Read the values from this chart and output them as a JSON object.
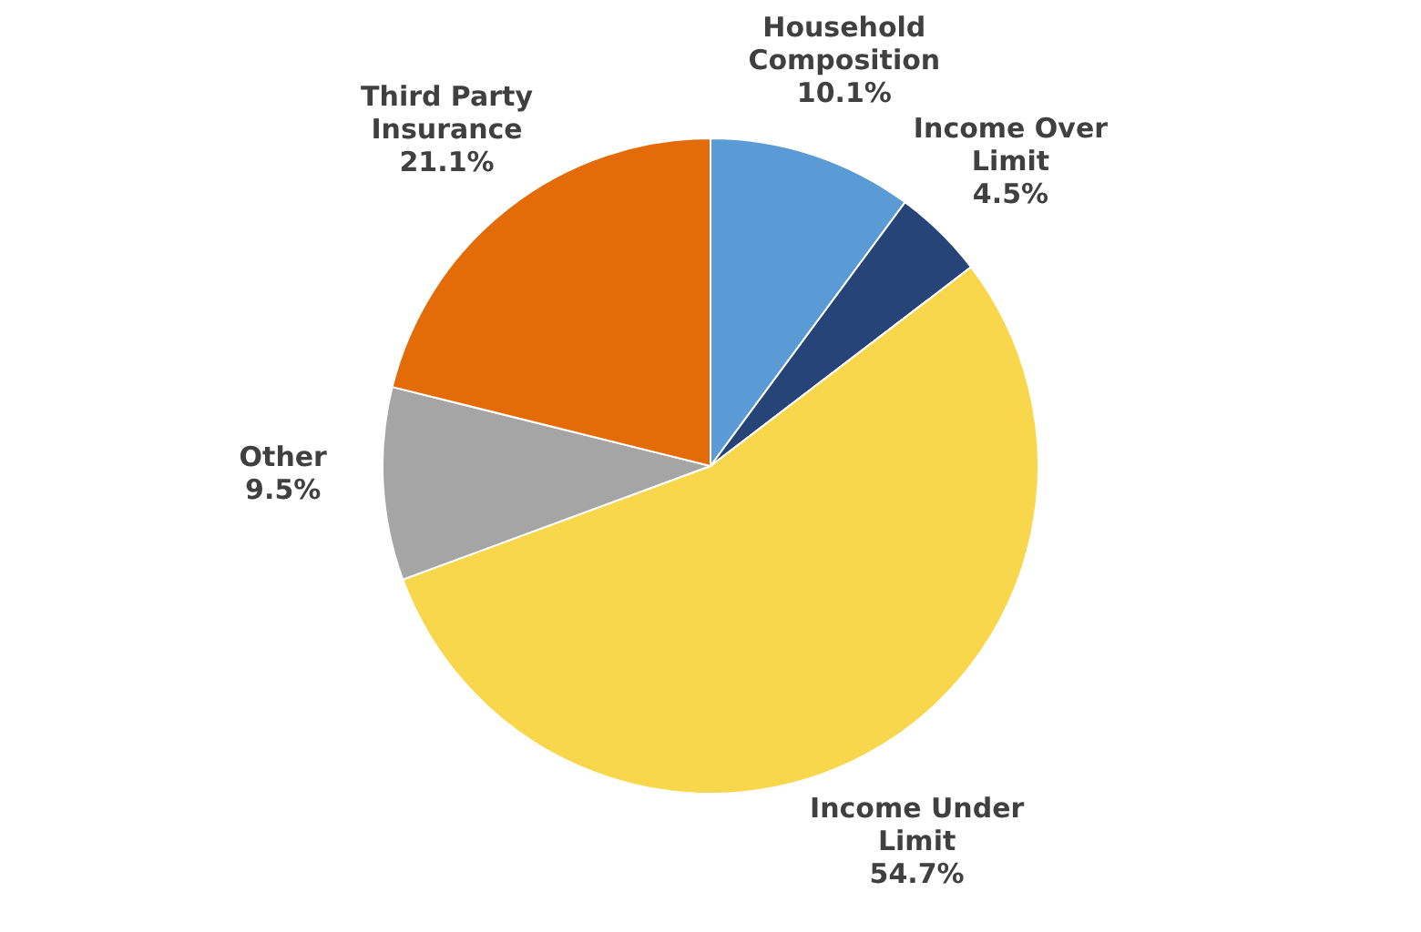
{
  "chart_data": {
    "type": "pie",
    "categories": [
      "Household Composition",
      "Income Over Limit",
      "Income Under Limit",
      "Other",
      "Third Party Insurance"
    ],
    "values": [
      10.1,
      4.5,
      54.7,
      9.5,
      21.1
    ],
    "value_labels": [
      "10.1%",
      "4.5%",
      "54.7%",
      "9.5%",
      "21.1%"
    ],
    "colors": [
      "#5b9bd5",
      "#264478",
      "#f9d74c",
      "#a5a5a5",
      "#e36c09"
    ]
  }
}
